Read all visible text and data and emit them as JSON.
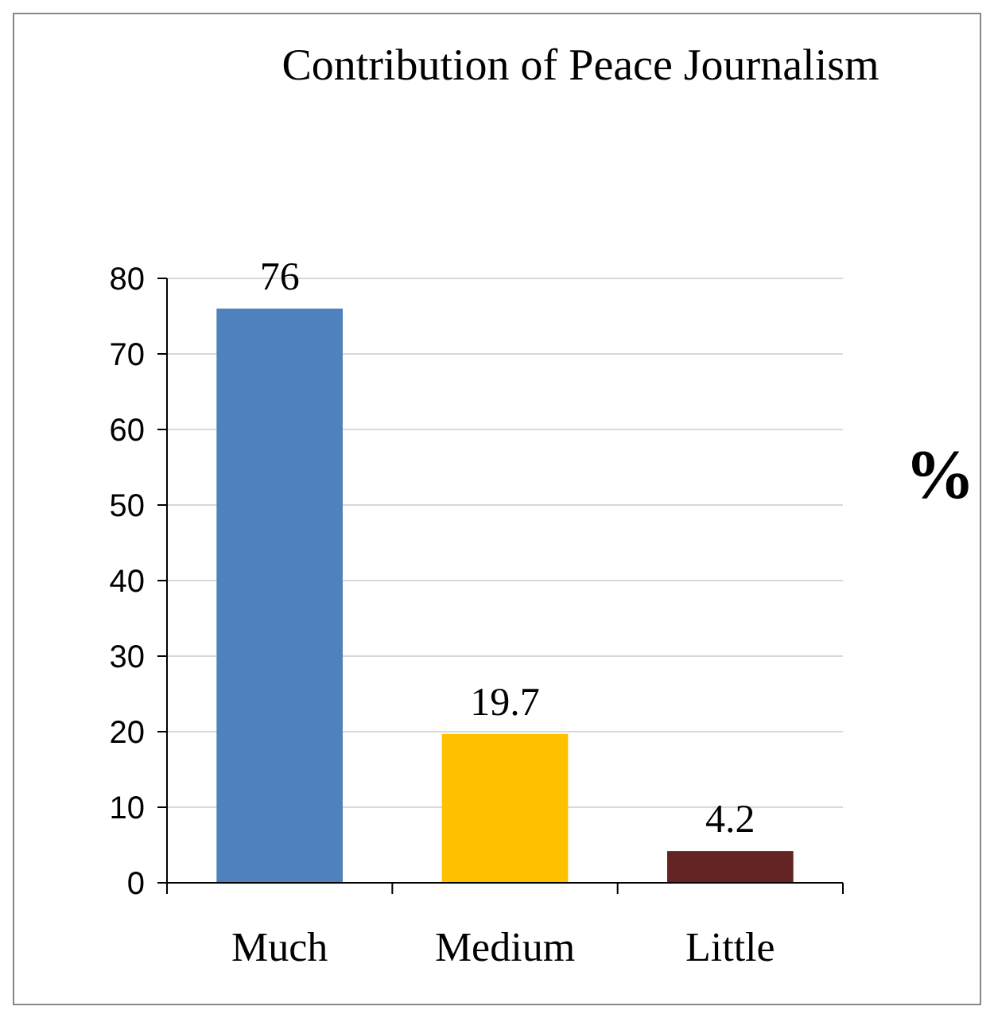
{
  "chart_data": {
    "type": "bar",
    "title": "Contribution of Peace Journalism",
    "ylabel": "%",
    "categories": [
      "Much",
      "Medium",
      "Little"
    ],
    "values": [
      76,
      19.7,
      4.2
    ],
    "colors": [
      "#4f81bd",
      "#ffc000",
      "#632523"
    ],
    "ylim": [
      0,
      80
    ],
    "yticks": [
      0,
      10,
      20,
      30,
      40,
      50,
      60,
      70,
      80
    ],
    "grid": "y",
    "data_labels": true
  }
}
